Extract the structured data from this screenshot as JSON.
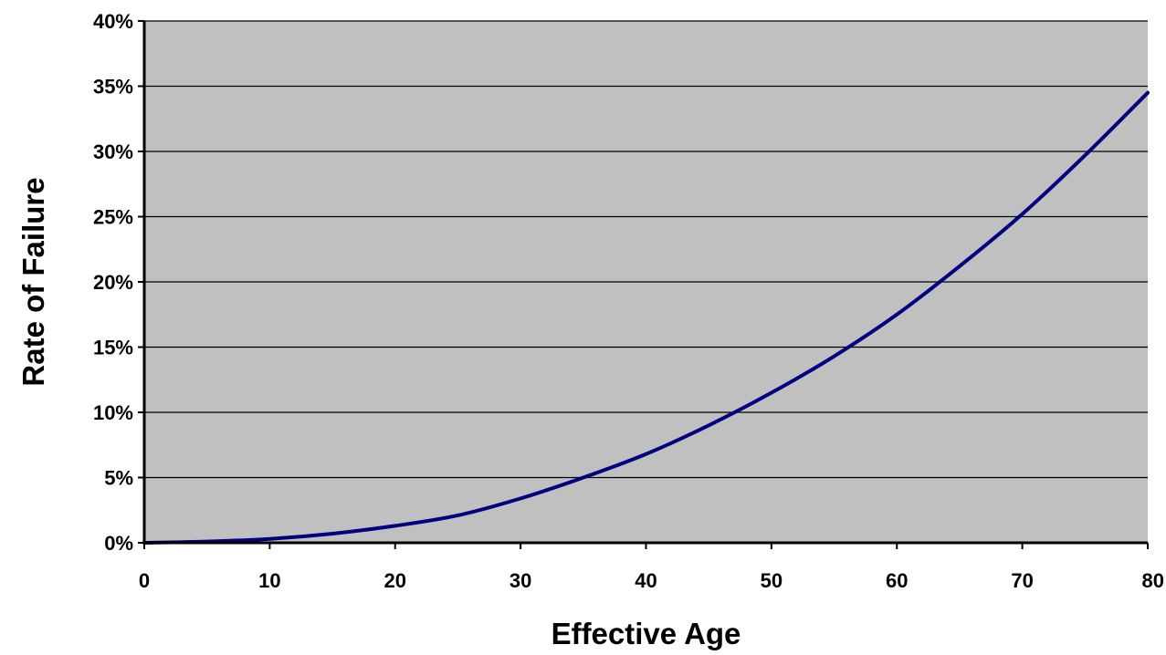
{
  "chart_data": {
    "type": "line",
    "title": "",
    "xlabel": "Effective Age",
    "ylabel": "Rate of Failure",
    "xlim": [
      0,
      80
    ],
    "ylim": [
      0,
      0.4
    ],
    "x_ticks": [
      0,
      10,
      20,
      30,
      40,
      50,
      60,
      70,
      80
    ],
    "x_tick_labels": [
      "0",
      "10",
      "20",
      "30",
      "40",
      "50",
      "60",
      "70",
      "80"
    ],
    "y_ticks": [
      0,
      0.05,
      0.1,
      0.15,
      0.2,
      0.25,
      0.3,
      0.35,
      0.4
    ],
    "y_tick_labels": [
      "0%",
      "5%",
      "10%",
      "15%",
      "20%",
      "25%",
      "30%",
      "35%",
      "40%"
    ],
    "grid": "horizontal",
    "legend": "none",
    "colors": {
      "plot_background": "#c0c0c0",
      "line": "#000080",
      "gridline": "#000000",
      "axis": "#000000"
    },
    "series": [
      {
        "x": [
          0,
          5,
          10,
          15,
          20,
          25,
          30,
          35,
          40,
          45,
          50,
          55,
          60,
          65,
          70,
          75,
          80
        ],
        "values": [
          0,
          0.001,
          0.003,
          0.007,
          0.013,
          0.021,
          0.034,
          0.05,
          0.068,
          0.09,
          0.115,
          0.143,
          0.175,
          0.212,
          0.252,
          0.297,
          0.345
        ]
      }
    ]
  }
}
